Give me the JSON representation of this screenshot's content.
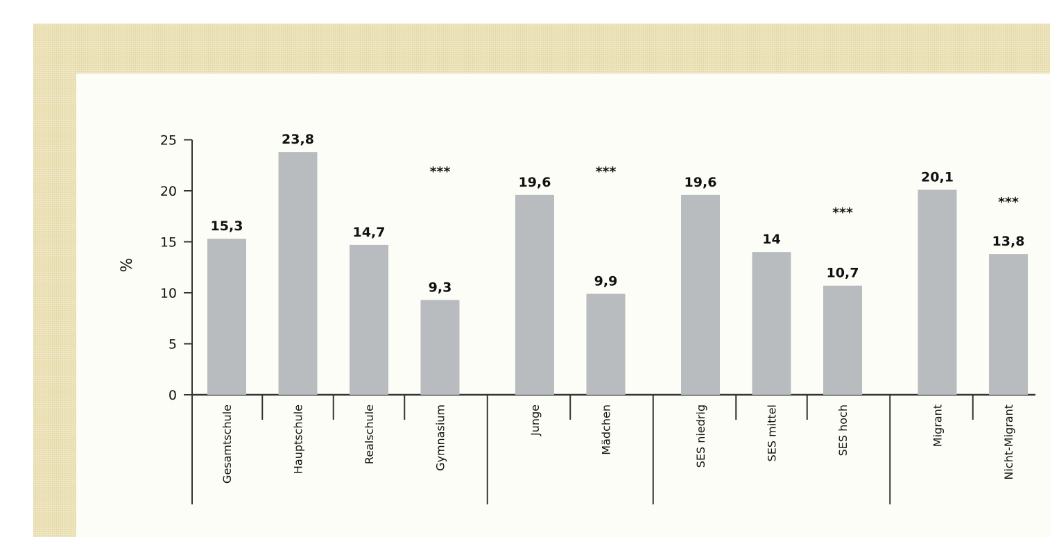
{
  "chart_data": {
    "type": "bar",
    "ylabel": "%",
    "ylim": [
      0,
      25
    ],
    "yticks": [
      0,
      5,
      10,
      15,
      20,
      25
    ],
    "grid": false,
    "bar_color": "#b9bcbf",
    "categories": [
      "Gesamtschule",
      "Hauptschule",
      "Realschule",
      "Gymnasium",
      "Junge",
      "Mädchen",
      "SES niedrig",
      "SES mittel",
      "SES hoch",
      "Migrant",
      "Nicht-Migrant"
    ],
    "values": [
      15.3,
      23.8,
      14.7,
      9.3,
      19.6,
      9.9,
      19.6,
      14,
      10.7,
      20.1,
      13.8
    ],
    "value_labels": [
      "15,3",
      "23,8",
      "14,7",
      "9,3",
      "19,6",
      "9,9",
      "19,6",
      "14",
      "10,7",
      "20,1",
      "13,8"
    ],
    "groups": [
      {
        "categories": [
          "Gesamtschule",
          "Hauptschule",
          "Realschule",
          "Gymnasium"
        ],
        "significance": "***",
        "sig_level": 22
      },
      {
        "categories": [
          "Junge",
          "Mädchen"
        ],
        "significance": "***",
        "sig_level": 22
      },
      {
        "categories": [
          "SES niedrig",
          "SES mittel",
          "SES hoch"
        ],
        "significance": "***",
        "sig_level": 18
      },
      {
        "categories": [
          "Migrant",
          "Nicht-Migrant"
        ],
        "significance": "***",
        "sig_level": 19
      }
    ]
  }
}
